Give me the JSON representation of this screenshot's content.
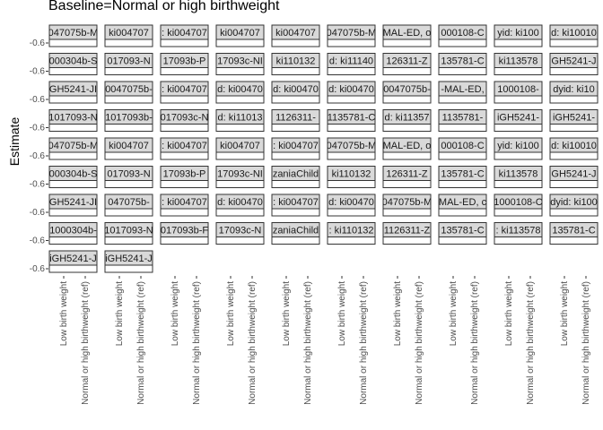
{
  "chart_data": {
    "type": "scatter",
    "title": "Baseline=Normal or high birthweight",
    "xlabel": "",
    "ylabel": "Estimate",
    "categories": [
      "Low birth weight",
      "Normal or high birthweight (ref)"
    ],
    "y_tick_label": "-0.6",
    "grid": false,
    "facets": [
      [
        "047075b-M",
        "ki004707",
        ": ki004707",
        "ki004707",
        "ki004707",
        "047075b-M",
        "MAL-ED, o",
        "000108-C",
        "yid: ki100",
        "d: ki10010"
      ],
      [
        "000304b-S",
        "017093-N",
        "17093b-P",
        "17093c-NI",
        "ki110132",
        "d: ki11140",
        "126311-Z",
        "135781-C",
        "ki113578",
        "GH5241-J"
      ],
      [
        "GH5241-JI",
        "0047075b-",
        ": ki004707",
        "d: ki00470",
        "d: ki00470",
        "d: ki00470",
        "0047075b-",
        "-MAL-ED, ",
        "1000108-",
        "dyid: ki10"
      ],
      [
        "1017093-N",
        "1017093b-",
        "017093c-N",
        "d: ki11013",
        "1126311-",
        "1135781-C",
        "d: ki11357",
        "1135781-",
        "iGH5241-",
        "iGH5241-"
      ],
      [
        "047075b-M",
        "ki004707",
        ": ki004707",
        "ki004707",
        ": ki004707",
        "047075b-M",
        "MAL-ED, o",
        "000108-C",
        "yid: ki100",
        "d: ki10010"
      ],
      [
        "000304b-S",
        "017093-N",
        "17093b-P",
        "17093c-NI",
        "zaniaChild",
        "ki110132",
        "126311-Z",
        "135781-C",
        "ki113578",
        "GH5241-J"
      ],
      [
        "GH5241-JI",
        "047075b-",
        ": ki004707",
        "d: ki00470",
        ": ki004707",
        "d: ki00470",
        "047075b-M",
        "MAL-ED, c",
        "1000108-C",
        "dyid: ki100"
      ],
      [
        "1000304b-",
        "1017093-N",
        "017093b-F",
        "17093c-N",
        "zaniaChild",
        ": ki110132",
        "1126311-Z",
        "135781-C",
        ": ki113578",
        "135781-C"
      ],
      [
        "iGH5241-J",
        "iGH5241-J"
      ]
    ],
    "x_axis_columns": 10
  }
}
